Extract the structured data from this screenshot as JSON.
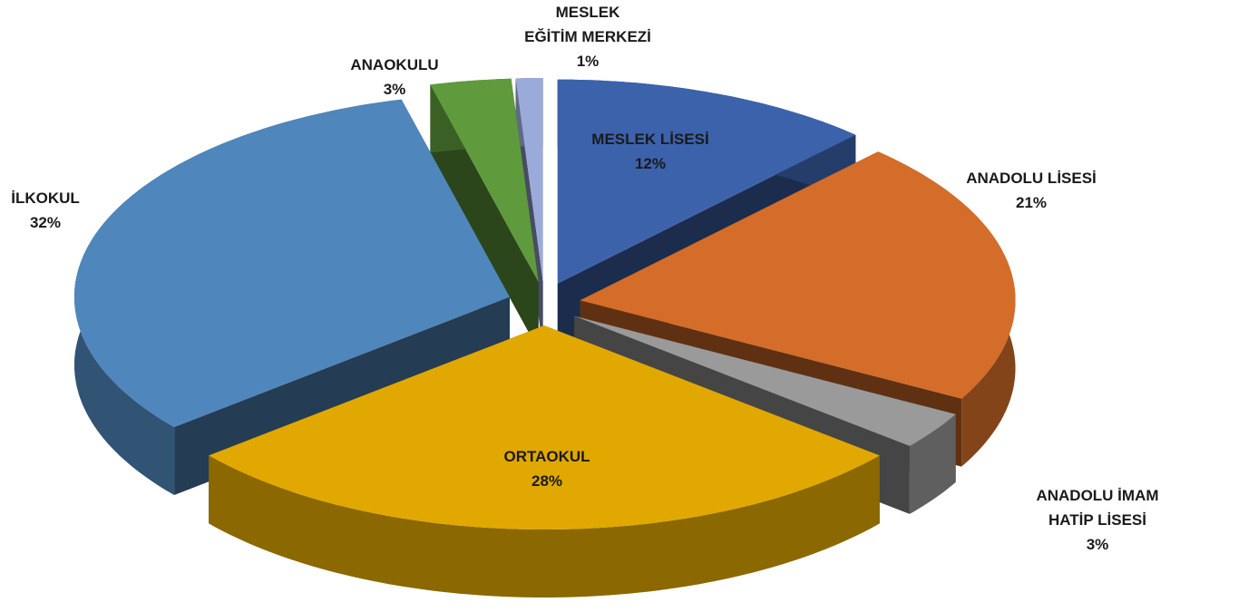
{
  "chart_data": {
    "type": "pie",
    "categories": [
      "MESLEK LİSESİ",
      "ANADOLU LİSESİ",
      "ANADOLU İMAM HATİP LİSESİ",
      "ORTAOKUL",
      "İLKOKUL",
      "ANAOKULU",
      "MESLEK\nEĞİTİM MERKEZİ"
    ],
    "values": [
      12,
      21,
      3,
      28,
      32,
      3,
      1
    ],
    "value_labels": [
      "12%",
      "21%",
      "3%",
      "28%",
      "32%",
      "3%",
      "1%"
    ],
    "colors": [
      "#3c62ab",
      "#d36d29",
      "#9a9a9a",
      "#e0a800",
      "#4f86bb",
      "#5f9b3c",
      "#9babd9"
    ]
  }
}
